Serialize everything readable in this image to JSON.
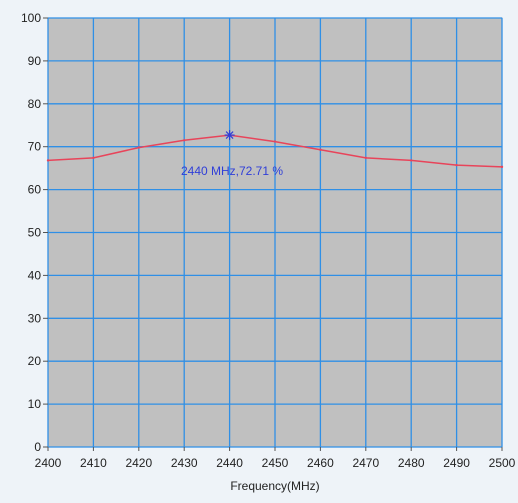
{
  "chart_data": {
    "type": "line",
    "title": "",
    "xlabel": "Frequency(MHz)",
    "ylabel": "",
    "xlim": [
      2400,
      2500
    ],
    "ylim": [
      0,
      100
    ],
    "grid": true,
    "x_ticks": [
      "2400",
      "2410",
      "2420",
      "2430",
      "2440",
      "2450",
      "2460",
      "2470",
      "2480",
      "2490",
      "2500"
    ],
    "y_ticks": [
      "0",
      "10",
      "20",
      "30",
      "40",
      "50",
      "60",
      "70",
      "80",
      "90",
      "100"
    ],
    "series": [
      {
        "x": [
          2400,
          2410,
          2420,
          2430,
          2440,
          2450,
          2460,
          2470,
          2480,
          2490,
          2500
        ],
        "y": [
          66.8,
          67.4,
          69.8,
          71.5,
          72.71,
          71.2,
          69.3,
          67.4,
          66.8,
          65.7,
          65.3
        ]
      }
    ],
    "annotation": {
      "x": 2440,
      "y": 72.71,
      "text": "2440 MHz,72.71 %"
    },
    "colors": {
      "plot_background": "#c0c0c0",
      "grid": "#2f8fe6",
      "line": "#e8445a",
      "annotation": "#2f3ed8",
      "page_background": "#eef3f8"
    }
  }
}
